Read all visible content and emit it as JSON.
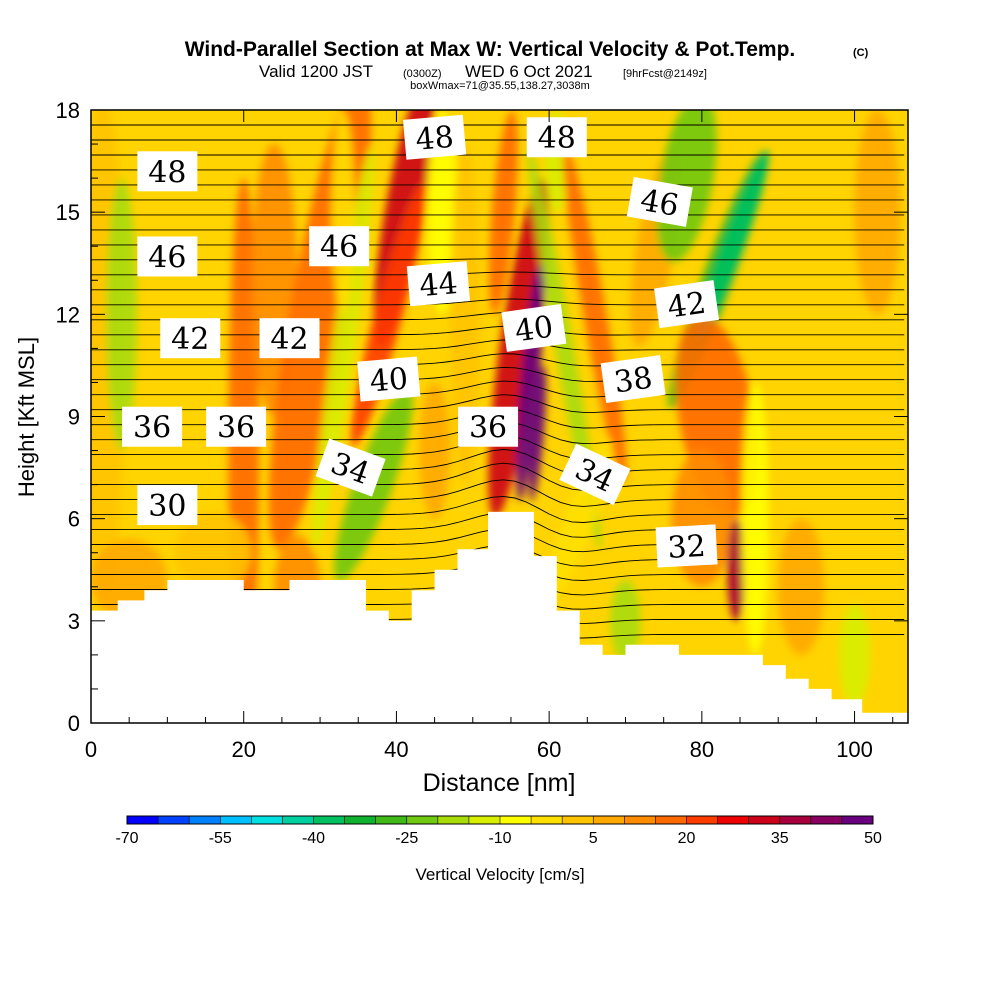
{
  "chart_data": {
    "type": "heatmap",
    "title": "Wind-Parallel Section at Max W: Vertical Velocity & Pot.Temp.",
    "title_mark": "(C)",
    "subtitle_parts": [
      "Valid 1200 JST",
      "(0300Z)",
      "WED 6 Oct 2021",
      "[9hrFcst@2149z]"
    ],
    "subtitle2": "boxWmax=71@35.55,138.27,3038m",
    "xlabel": "Distance [nm]",
    "ylabel": "Height [Kft MSL]",
    "xlim": [
      0,
      107
    ],
    "ylim": [
      0,
      18
    ],
    "x_ticks": [
      "0",
      "20",
      "40",
      "60",
      "80",
      "100"
    ],
    "y_ticks": [
      "0",
      "3",
      "6",
      "9",
      "12",
      "15",
      "18"
    ],
    "colorbar": {
      "label": "Vertical Velocity [cm/s]",
      "range": [
        -70,
        65
      ],
      "step": 5,
      "tick_labels": [
        "-70",
        "-55",
        "-40",
        "-25",
        "-10",
        "5",
        "20",
        "35",
        "50"
      ],
      "colors": [
        "#0000ff",
        "#0040ff",
        "#0080ff",
        "#00c0ff",
        "#00e0e0",
        "#00d0a0",
        "#00c060",
        "#10b030",
        "#40b818",
        "#70c810",
        "#a8dc08",
        "#d8ee00",
        "#ffff00",
        "#ffe000",
        "#ffc400",
        "#ffa800",
        "#ff8c00",
        "#ff6a00",
        "#ff3c00",
        "#ee0000",
        "#cc0018",
        "#a8003c",
        "#880060",
        "#680080"
      ]
    },
    "potential_temperature_labels": [
      {
        "text": "48",
        "x": 10,
        "y": 16.2,
        "rot": 0
      },
      {
        "text": "46",
        "x": 10,
        "y": 13.7,
        "rot": 0
      },
      {
        "text": "42",
        "x": 13,
        "y": 11.3,
        "rot": 0
      },
      {
        "text": "36",
        "x": 8,
        "y": 8.7,
        "rot": 0
      },
      {
        "text": "30",
        "x": 10,
        "y": 6.4,
        "rot": 0
      },
      {
        "text": "42",
        "x": 26,
        "y": 11.3,
        "rot": 0
      },
      {
        "text": "36",
        "x": 19,
        "y": 8.7,
        "rot": 0
      },
      {
        "text": "46",
        "x": 32.5,
        "y": 14.0,
        "rot": 0
      },
      {
        "text": "48",
        "x": 45,
        "y": 17.2,
        "rot": -5
      },
      {
        "text": "44",
        "x": 45.5,
        "y": 12.9,
        "rot": -5
      },
      {
        "text": "40",
        "x": 39,
        "y": 10.1,
        "rot": -5
      },
      {
        "text": "34",
        "x": 34,
        "y": 7.5,
        "rot": 20
      },
      {
        "text": "36",
        "x": 52,
        "y": 8.7,
        "rot": 0
      },
      {
        "text": "48",
        "x": 61,
        "y": 17.2,
        "rot": 0
      },
      {
        "text": "40",
        "x": 58,
        "y": 11.6,
        "rot": -8
      },
      {
        "text": "46",
        "x": 74.5,
        "y": 15.3,
        "rot": 10
      },
      {
        "text": "42",
        "x": 78,
        "y": 12.3,
        "rot": -8
      },
      {
        "text": "38",
        "x": 71,
        "y": 10.1,
        "rot": -8
      },
      {
        "text": "34",
        "x": 66,
        "y": 7.3,
        "rot": 25
      },
      {
        "text": "32",
        "x": 78,
        "y": 5.2,
        "rot": -3
      }
    ]
  }
}
